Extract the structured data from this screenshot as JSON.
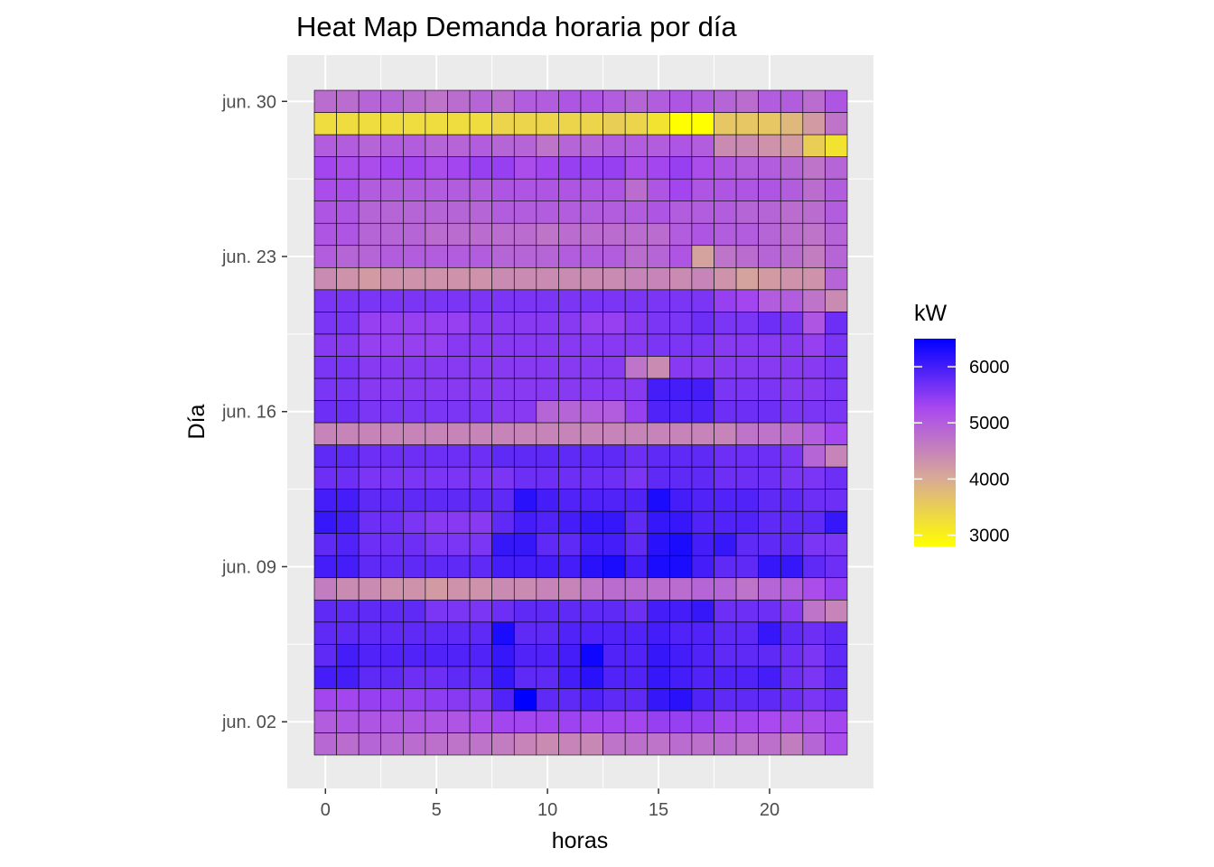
{
  "chart_data": {
    "type": "heatmap",
    "title": "Heat Map Demanda horaria por día",
    "xlabel": "horas",
    "ylabel": "Día",
    "x_ticks": [
      0,
      5,
      10,
      15,
      20
    ],
    "x": [
      0,
      1,
      2,
      3,
      4,
      5,
      6,
      7,
      8,
      9,
      10,
      11,
      12,
      13,
      14,
      15,
      16,
      17,
      18,
      19,
      20,
      21,
      22,
      23
    ],
    "y_ticks": [
      {
        "day": 2,
        "label": "jun. 02"
      },
      {
        "day": 9,
        "label": "jun. 09"
      },
      {
        "day": 16,
        "label": "jun. 16"
      },
      {
        "day": 23,
        "label": "jun. 23"
      },
      {
        "day": 30,
        "label": "jun. 30"
      }
    ],
    "days": [
      1,
      2,
      3,
      4,
      5,
      6,
      7,
      8,
      9,
      10,
      11,
      12,
      13,
      14,
      15,
      16,
      17,
      18,
      19,
      20,
      21,
      22,
      23,
      24,
      25,
      26,
      27,
      28,
      29,
      30
    ],
    "grid": true,
    "background": "#ebebeb",
    "legend": {
      "title": "kW",
      "position": "right",
      "ticks": [
        3000,
        4000,
        5000,
        6000
      ],
      "min": 2800,
      "max": 6500,
      "colors": [
        "#ffff00",
        "#d8a898",
        "#a848f0",
        "#0000ff"
      ]
    },
    "values": [
      [
        4850,
        4800,
        4900,
        4850,
        4800,
        4750,
        4700,
        4700,
        4600,
        4500,
        4400,
        4500,
        4450,
        4700,
        4750,
        4700,
        4800,
        4750,
        4800,
        4700,
        4750,
        4600,
        4900,
        5200
      ],
      [
        5000,
        5100,
        5100,
        5100,
        5100,
        5100,
        5100,
        5200,
        5300,
        5300,
        5300,
        5350,
        5300,
        5300,
        5300,
        5400,
        5400,
        5400,
        5300,
        5300,
        5250,
        5200,
        5200,
        5300
      ],
      [
        5300,
        5300,
        5400,
        5400,
        5400,
        5450,
        5500,
        5500,
        5900,
        6500,
        5800,
        5800,
        5900,
        5800,
        5800,
        6100,
        6200,
        5900,
        5800,
        5800,
        5800,
        5700,
        5600,
        5700
      ],
      [
        6000,
        6000,
        5800,
        5800,
        5700,
        5700,
        5800,
        5800,
        6100,
        5800,
        5800,
        6000,
        6200,
        5900,
        5900,
        6100,
        6000,
        5900,
        5900,
        5900,
        6000,
        5700,
        5600,
        5800
      ],
      [
        5800,
        6000,
        5900,
        5900,
        5900,
        5900,
        5900,
        5900,
        6100,
        5900,
        5900,
        6000,
        6400,
        5900,
        5900,
        6100,
        6000,
        5900,
        5800,
        5800,
        5800,
        5700,
        5600,
        5800
      ],
      [
        5800,
        5800,
        5800,
        5800,
        5800,
        5800,
        5800,
        5800,
        6300,
        5800,
        5800,
        5900,
        5900,
        5900,
        5900,
        6000,
        5900,
        5900,
        5800,
        5800,
        6100,
        5800,
        5700,
        5800
      ],
      [
        5800,
        5800,
        5800,
        5800,
        5800,
        5600,
        5600,
        5600,
        5700,
        5800,
        5800,
        5800,
        5800,
        5800,
        5700,
        6000,
        6000,
        6100,
        5700,
        5700,
        5700,
        5500,
        4700,
        4500
      ],
      [
        4600,
        4400,
        4400,
        4300,
        4300,
        4200,
        4300,
        4300,
        4400,
        4400,
        4500,
        4500,
        4700,
        4800,
        4800,
        4800,
        4800,
        4900,
        4900,
        4700,
        4900,
        5000,
        5200,
        5400
      ],
      [
        6000,
        6000,
        5800,
        5800,
        5800,
        5800,
        5800,
        5800,
        6000,
        6000,
        6000,
        6000,
        6200,
        6300,
        6000,
        6300,
        6300,
        6000,
        5800,
        5800,
        6100,
        6100,
        5800,
        5700
      ],
      [
        5800,
        5900,
        5700,
        5700,
        5700,
        5600,
        5600,
        5600,
        6100,
        6100,
        5800,
        5800,
        6000,
        6000,
        5800,
        6200,
        6300,
        6000,
        6100,
        5800,
        5800,
        5800,
        5600,
        5600
      ],
      [
        6100,
        6000,
        5700,
        5700,
        5600,
        5500,
        5500,
        5500,
        5800,
        6000,
        5900,
        6000,
        6100,
        6100,
        5800,
        6100,
        6100,
        5900,
        5900,
        5900,
        5800,
        5800,
        5800,
        6100
      ],
      [
        6000,
        6000,
        5800,
        5800,
        5800,
        5800,
        5800,
        5800,
        5800,
        6200,
        6000,
        5900,
        5900,
        5900,
        5900,
        6300,
        6000,
        5900,
        5900,
        5900,
        5800,
        5800,
        5700,
        5700
      ],
      [
        5700,
        5700,
        5600,
        5600,
        5600,
        5600,
        5600,
        5600,
        5600,
        5700,
        5700,
        5700,
        5700,
        5700,
        5600,
        5800,
        5800,
        5800,
        5700,
        5700,
        5700,
        5600,
        5600,
        5700
      ],
      [
        5800,
        5800,
        5700,
        5700,
        5700,
        5700,
        5700,
        5700,
        5800,
        5800,
        5800,
        5800,
        5800,
        5800,
        5700,
        5800,
        5800,
        5800,
        5700,
        5700,
        5700,
        5600,
        4900,
        4500
      ],
      [
        4500,
        4500,
        4500,
        4500,
        4500,
        4500,
        4500,
        4500,
        4500,
        4500,
        4500,
        4500,
        4500,
        4500,
        4500,
        4500,
        4500,
        4500,
        4500,
        4700,
        4700,
        4800,
        5000,
        5300
      ],
      [
        5700,
        5700,
        5600,
        5600,
        5600,
        5600,
        5600,
        5600,
        5500,
        5500,
        4900,
        4900,
        5000,
        5000,
        5400,
        5900,
        5900,
        5900,
        5700,
        5700,
        5700,
        5600,
        5600,
        5600
      ],
      [
        5600,
        5600,
        5500,
        5500,
        5500,
        5500,
        5500,
        5500,
        5500,
        5500,
        5500,
        5500,
        5500,
        5500,
        5500,
        6000,
        6000,
        6000,
        5600,
        5600,
        5600,
        5500,
        5500,
        5600
      ],
      [
        5600,
        5600,
        5500,
        5500,
        5500,
        5500,
        5500,
        5500,
        5500,
        5500,
        5500,
        5500,
        5500,
        5500,
        4700,
        4400,
        5500,
        5500,
        5500,
        5500,
        5500,
        5500,
        5500,
        5600
      ],
      [
        5500,
        5500,
        5400,
        5400,
        5400,
        5400,
        5500,
        5500,
        5500,
        5500,
        5500,
        5500,
        5500,
        5500,
        5500,
        5600,
        5600,
        5600,
        5500,
        5500,
        5500,
        5500,
        5400,
        5600
      ],
      [
        5600,
        5600,
        5400,
        5400,
        5400,
        5400,
        5400,
        5500,
        5500,
        5500,
        5500,
        5500,
        5400,
        5400,
        5500,
        5600,
        5600,
        5700,
        5600,
        5600,
        5700,
        5600,
        5100,
        5700
      ],
      [
        5600,
        5600,
        5600,
        5600,
        5600,
        5600,
        5600,
        5600,
        5600,
        5600,
        5600,
        5600,
        5600,
        5600,
        5600,
        5600,
        5600,
        5600,
        5400,
        5300,
        5000,
        5000,
        4700,
        4400
      ],
      [
        4400,
        4300,
        4200,
        4300,
        4300,
        4300,
        4300,
        4300,
        4400,
        4400,
        4400,
        4400,
        4400,
        4400,
        4500,
        4500,
        4400,
        4500,
        4300,
        4100,
        4200,
        4300,
        4300,
        4900
      ],
      [
        5000,
        4900,
        4900,
        5000,
        5000,
        5000,
        5000,
        5000,
        4900,
        4900,
        4900,
        5000,
        5000,
        5000,
        4800,
        4900,
        5100,
        4100,
        4700,
        4800,
        4900,
        4800,
        4600,
        4900
      ],
      [
        5100,
        5100,
        4900,
        4900,
        4900,
        4800,
        4800,
        4800,
        4800,
        4800,
        4700,
        4800,
        4800,
        4800,
        4800,
        4800,
        5000,
        5100,
        5000,
        5000,
        4900,
        4800,
        4700,
        4900
      ],
      [
        5100,
        5100,
        4900,
        4900,
        4900,
        4900,
        4900,
        4900,
        5000,
        5000,
        5000,
        5000,
        5000,
        5000,
        5000,
        5100,
        5000,
        5000,
        5000,
        4900,
        4900,
        4800,
        4800,
        5000
      ],
      [
        5200,
        5200,
        5000,
        5000,
        5000,
        5000,
        5000,
        5000,
        5100,
        5100,
        5100,
        5100,
        5100,
        5100,
        4800,
        5100,
        5300,
        5100,
        5100,
        5100,
        5100,
        5000,
        4800,
        5000
      ],
      [
        5300,
        5200,
        5200,
        5300,
        5300,
        5200,
        5300,
        5400,
        5400,
        5200,
        5300,
        5400,
        5400,
        5400,
        5200,
        5300,
        5400,
        5200,
        5100,
        5000,
        5000,
        4900,
        4700,
        4900
      ],
      [
        5000,
        5000,
        4900,
        5000,
        5000,
        4900,
        4900,
        5000,
        4900,
        4900,
        4700,
        4900,
        4900,
        5000,
        5000,
        5000,
        5100,
        5000,
        4400,
        4400,
        4300,
        4200,
        3500,
        3200
      ],
      [
        3300,
        3300,
        3300,
        3300,
        3300,
        3300,
        3300,
        3300,
        3400,
        3400,
        3400,
        3400,
        3400,
        3500,
        3400,
        3200,
        2800,
        2800,
        3600,
        3600,
        3600,
        3800,
        4200,
        4700
      ],
      [
        4800,
        4800,
        4900,
        4900,
        4800,
        4700,
        4800,
        4900,
        4800,
        5000,
        5000,
        5100,
        5100,
        5000,
        4900,
        5000,
        5100,
        5000,
        4900,
        4800,
        5000,
        5000,
        4800,
        5100
      ]
    ]
  }
}
